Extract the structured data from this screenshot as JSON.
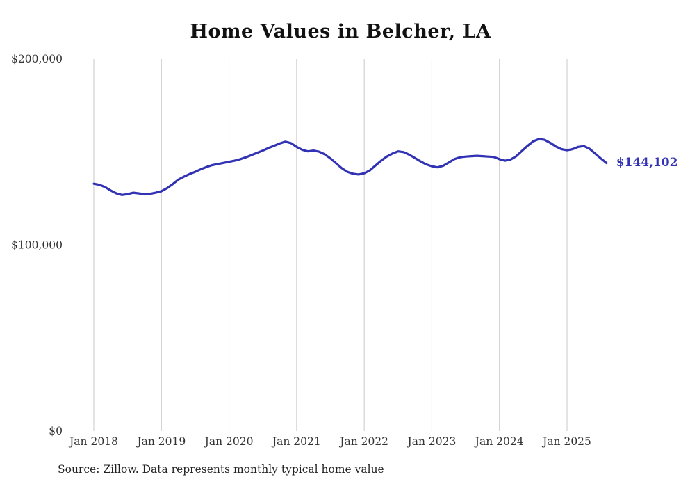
{
  "title": "Home Values in Belcher, LA",
  "source": "Source: Zillow. Data represents monthly typical home value",
  "end_label": "$144,102",
  "colors": {
    "line": "#3232b4",
    "grid": "#c9c9c9",
    "text": "#333333",
    "title": "#111111"
  },
  "chart_data": {
    "type": "line",
    "title": "Home Values in Belcher, LA",
    "x_start": "2018-01",
    "x_end": "2025-08",
    "x_tick_labels": [
      "Jan 2018",
      "Jan 2019",
      "Jan 2020",
      "Jan 2021",
      "Jan 2022",
      "Jan 2023",
      "Jan 2024",
      "Jan 2025"
    ],
    "y_ticks": [
      {
        "value": 0,
        "label": "$0"
      },
      {
        "value": 100000,
        "label": "$100,000"
      },
      {
        "value": 200000,
        "label": "$200,000"
      }
    ],
    "ylim": [
      0,
      200000
    ],
    "grid": "vertical-only",
    "legend": "none",
    "annotation": {
      "text": "$144,102",
      "position": "line-end"
    },
    "last_value": 144102,
    "series": [
      {
        "name": "Monthly typical home value",
        "values": [
          133000,
          132400,
          131200,
          129400,
          127800,
          127000,
          127400,
          128200,
          127800,
          127400,
          127600,
          128200,
          129000,
          130600,
          132800,
          135200,
          136800,
          138200,
          139400,
          140800,
          142000,
          143000,
          143600,
          144200,
          144800,
          145400,
          146200,
          147200,
          148400,
          149600,
          150800,
          152200,
          153400,
          154600,
          155600,
          154800,
          152800,
          151200,
          150400,
          150800,
          150200,
          148800,
          146600,
          144000,
          141400,
          139400,
          138400,
          138000,
          138600,
          140200,
          142800,
          145400,
          147600,
          149200,
          150400,
          150000,
          148600,
          146800,
          145000,
          143400,
          142400,
          141800,
          142600,
          144400,
          146200,
          147200,
          147600,
          147800,
          148000,
          147800,
          147600,
          147400,
          146200,
          145400,
          146000,
          147800,
          150600,
          153400,
          155800,
          157000,
          156600,
          155000,
          153000,
          151600,
          151000,
          151600,
          152800,
          153200,
          151800,
          149200,
          146600,
          144102
        ]
      }
    ]
  }
}
